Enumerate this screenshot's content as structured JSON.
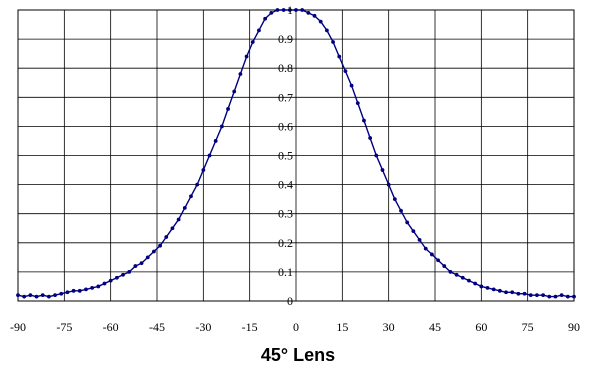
{
  "chart_data": {
    "type": "scatter",
    "title": "45° Lens",
    "xlabel": "",
    "ylabel": "",
    "xlim": [
      -90,
      90
    ],
    "ylim": [
      0,
      1
    ],
    "x_ticks": [
      -90,
      -75,
      -60,
      -45,
      -30,
      -15,
      0,
      15,
      30,
      45,
      60,
      75,
      90
    ],
    "y_ticks": [
      0,
      0.1,
      0.2,
      0.3,
      0.4,
      0.5,
      0.6,
      0.7,
      0.8,
      0.9,
      1
    ],
    "grid": true,
    "legend": "none",
    "series_color": "#000080",
    "x": [
      -90,
      -88,
      -86,
      -84,
      -82,
      -80,
      -78,
      -76,
      -74,
      -72,
      -70,
      -68,
      -66,
      -64,
      -62,
      -60,
      -58,
      -56,
      -54,
      -52,
      -50,
      -48,
      -46,
      -44,
      -42,
      -40,
      -38,
      -36,
      -34,
      -32,
      -30,
      -28,
      -26,
      -24,
      -22,
      -20,
      -18,
      -16,
      -14,
      -12,
      -10,
      -8,
      -6,
      -4,
      -2,
      0,
      2,
      4,
      6,
      8,
      10,
      12,
      14,
      16,
      18,
      20,
      22,
      24,
      26,
      28,
      30,
      32,
      34,
      36,
      38,
      40,
      42,
      44,
      46,
      48,
      50,
      52,
      54,
      56,
      58,
      60,
      62,
      64,
      66,
      68,
      70,
      72,
      74,
      76,
      78,
      80,
      82,
      84,
      86,
      88,
      90
    ],
    "y": [
      0.02,
      0.015,
      0.02,
      0.015,
      0.02,
      0.015,
      0.02,
      0.025,
      0.03,
      0.035,
      0.035,
      0.04,
      0.045,
      0.05,
      0.06,
      0.07,
      0.08,
      0.09,
      0.1,
      0.12,
      0.13,
      0.15,
      0.17,
      0.19,
      0.22,
      0.25,
      0.28,
      0.32,
      0.36,
      0.4,
      0.45,
      0.5,
      0.55,
      0.6,
      0.66,
      0.72,
      0.78,
      0.84,
      0.89,
      0.93,
      0.97,
      0.99,
      1.0,
      1.0,
      1.0,
      1.0,
      1.0,
      0.99,
      0.98,
      0.96,
      0.93,
      0.89,
      0.84,
      0.79,
      0.74,
      0.68,
      0.62,
      0.56,
      0.5,
      0.45,
      0.4,
      0.35,
      0.31,
      0.27,
      0.24,
      0.21,
      0.18,
      0.16,
      0.14,
      0.12,
      0.1,
      0.09,
      0.08,
      0.07,
      0.06,
      0.05,
      0.045,
      0.04,
      0.035,
      0.03,
      0.03,
      0.025,
      0.025,
      0.02,
      0.02,
      0.02,
      0.015,
      0.015,
      0.02,
      0.015,
      0.015
    ]
  }
}
